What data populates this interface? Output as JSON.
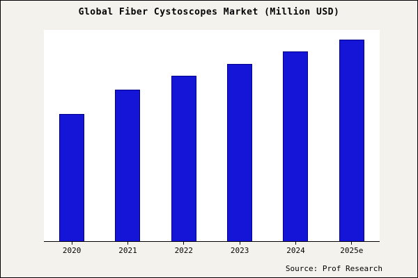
{
  "title": "Global Fiber Cystoscopes Market (Million USD)",
  "source": "Source: Prof Research",
  "colors": {
    "background": "#f3f2ec",
    "plot_bg": "#ffffff",
    "bar": "#1515d8",
    "bar_border": "#00008b",
    "axis": "#000000"
  },
  "chart_data": {
    "type": "bar",
    "title": "Global Fiber Cystoscopes Market (Million USD)",
    "categories": [
      "2020",
      "2021",
      "2022",
      "2023",
      "2024",
      "2025e"
    ],
    "values": [
      63,
      75,
      82,
      88,
      94,
      100
    ],
    "xlabel": "",
    "ylabel": "",
    "ylim": [
      0,
      105
    ],
    "grid": false,
    "legend": false,
    "y_axis_ticks_visible": false,
    "annotation": "Source: Prof Research"
  }
}
